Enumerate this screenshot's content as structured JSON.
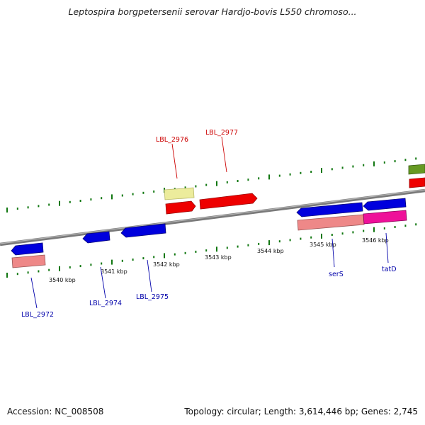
{
  "title": "Leptospira borgpetersenii serovar Hardjo-bovis L550 chromoso...",
  "footer": {
    "accession": "Accession: NC_008508",
    "topology": "Topology: circular; Length: 3,614,446 bp; Genes: 2,745"
  },
  "colors": {
    "forward_cds": "#ee0000",
    "reverse_cds": "#0000dd",
    "gene_pink": "#ee8888",
    "gene_yellow": "#eeeeaa",
    "gene_magenta": "#ee1199",
    "gene_olive": "#669922",
    "tick_green": "#117711",
    "backbone": "#888888"
  },
  "kbp_labels": [
    "3540 kbp",
    "3541 kbp",
    "3542 kbp",
    "3543 kbp",
    "3544 kbp",
    "3545 kbp",
    "3546 kbp"
  ],
  "gene_labels": {
    "top": [
      "LBL_2976",
      "LBL_2977"
    ],
    "bottom": [
      "LBL_2972",
      "LBL_2974",
      "LBL_2975",
      "serS",
      "tatD"
    ]
  }
}
